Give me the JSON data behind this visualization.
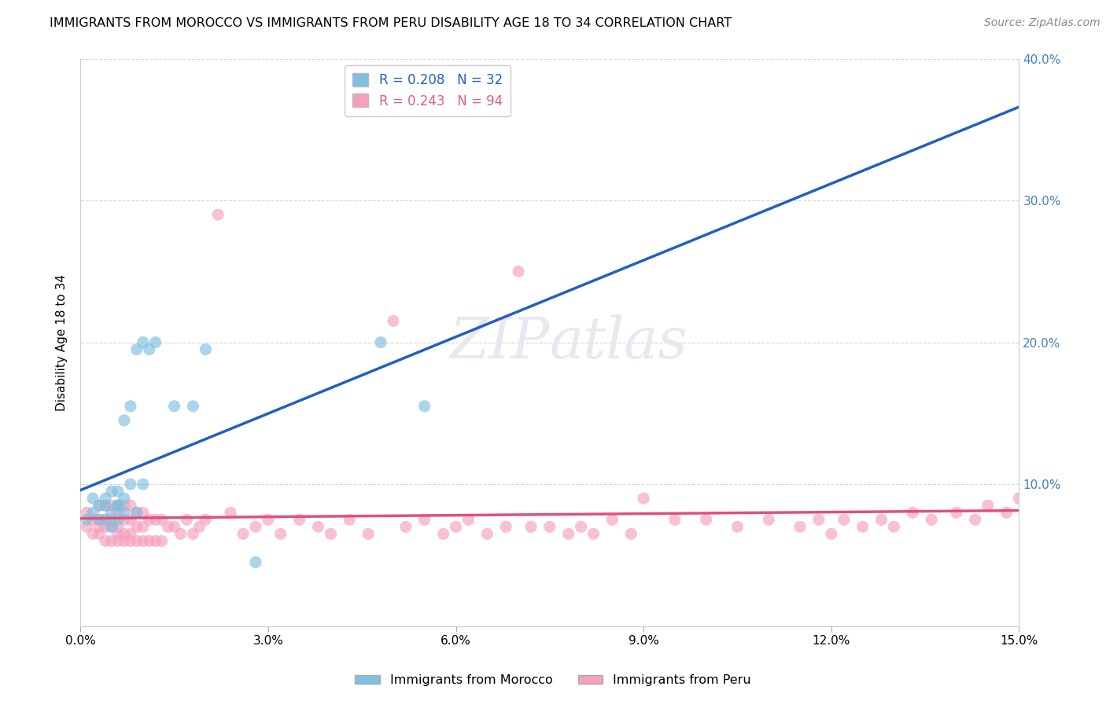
{
  "title": "IMMIGRANTS FROM MOROCCO VS IMMIGRANTS FROM PERU DISABILITY AGE 18 TO 34 CORRELATION CHART",
  "source": "Source: ZipAtlas.com",
  "ylabel": "Disability Age 18 to 34",
  "legend_label1": "Immigrants from Morocco",
  "legend_label2": "Immigrants from Peru",
  "r1": 0.208,
  "n1": 32,
  "r2": 0.243,
  "n2": 94,
  "color1": "#7fbfdf",
  "color2": "#f5a0bc",
  "trendline1_color": "#2060c0",
  "trendline2_color": "#e0507a",
  "watermark_color": "#e8e8f0",
  "xlim": [
    0.0,
    0.15
  ],
  "ylim": [
    0.0,
    0.4
  ],
  "right_tick_color": "#4080c0",
  "morocco_x": [
    0.001,
    0.002,
    0.002,
    0.003,
    0.003,
    0.004,
    0.004,
    0.004,
    0.005,
    0.005,
    0.005,
    0.006,
    0.006,
    0.006,
    0.006,
    0.007,
    0.007,
    0.007,
    0.008,
    0.008,
    0.009,
    0.009,
    0.01,
    0.01,
    0.011,
    0.012,
    0.015,
    0.018,
    0.02,
    0.028,
    0.048,
    0.055
  ],
  "morocco_y": [
    0.075,
    0.08,
    0.09,
    0.075,
    0.085,
    0.075,
    0.085,
    0.09,
    0.07,
    0.08,
    0.095,
    0.075,
    0.085,
    0.085,
    0.095,
    0.08,
    0.09,
    0.145,
    0.1,
    0.155,
    0.08,
    0.195,
    0.1,
    0.2,
    0.195,
    0.2,
    0.155,
    0.155,
    0.195,
    0.045,
    0.2,
    0.155
  ],
  "peru_x": [
    0.001,
    0.001,
    0.002,
    0.002,
    0.003,
    0.003,
    0.003,
    0.003,
    0.004,
    0.004,
    0.004,
    0.004,
    0.005,
    0.005,
    0.005,
    0.005,
    0.006,
    0.006,
    0.006,
    0.006,
    0.006,
    0.007,
    0.007,
    0.007,
    0.007,
    0.008,
    0.008,
    0.008,
    0.008,
    0.009,
    0.009,
    0.009,
    0.01,
    0.01,
    0.01,
    0.011,
    0.011,
    0.012,
    0.012,
    0.013,
    0.013,
    0.014,
    0.015,
    0.016,
    0.017,
    0.018,
    0.019,
    0.02,
    0.022,
    0.024,
    0.026,
    0.028,
    0.03,
    0.032,
    0.035,
    0.038,
    0.04,
    0.043,
    0.046,
    0.05,
    0.052,
    0.055,
    0.058,
    0.06,
    0.062,
    0.065,
    0.068,
    0.07,
    0.072,
    0.075,
    0.078,
    0.08,
    0.082,
    0.085,
    0.088,
    0.09,
    0.095,
    0.1,
    0.105,
    0.11,
    0.115,
    0.118,
    0.12,
    0.122,
    0.125,
    0.128,
    0.13,
    0.133,
    0.136,
    0.14,
    0.143,
    0.145,
    0.148,
    0.15
  ],
  "peru_y": [
    0.07,
    0.08,
    0.065,
    0.075,
    0.065,
    0.07,
    0.075,
    0.085,
    0.06,
    0.07,
    0.075,
    0.085,
    0.06,
    0.07,
    0.075,
    0.085,
    0.06,
    0.065,
    0.07,
    0.08,
    0.085,
    0.06,
    0.065,
    0.075,
    0.085,
    0.06,
    0.065,
    0.075,
    0.085,
    0.06,
    0.07,
    0.08,
    0.06,
    0.07,
    0.08,
    0.06,
    0.075,
    0.06,
    0.075,
    0.06,
    0.075,
    0.07,
    0.07,
    0.065,
    0.075,
    0.065,
    0.07,
    0.075,
    0.29,
    0.08,
    0.065,
    0.07,
    0.075,
    0.065,
    0.075,
    0.07,
    0.065,
    0.075,
    0.065,
    0.215,
    0.07,
    0.075,
    0.065,
    0.07,
    0.075,
    0.065,
    0.07,
    0.25,
    0.07,
    0.07,
    0.065,
    0.07,
    0.065,
    0.075,
    0.065,
    0.09,
    0.075,
    0.075,
    0.07,
    0.075,
    0.07,
    0.075,
    0.065,
    0.075,
    0.07,
    0.075,
    0.07,
    0.08,
    0.075,
    0.08,
    0.075,
    0.085,
    0.08,
    0.09
  ]
}
